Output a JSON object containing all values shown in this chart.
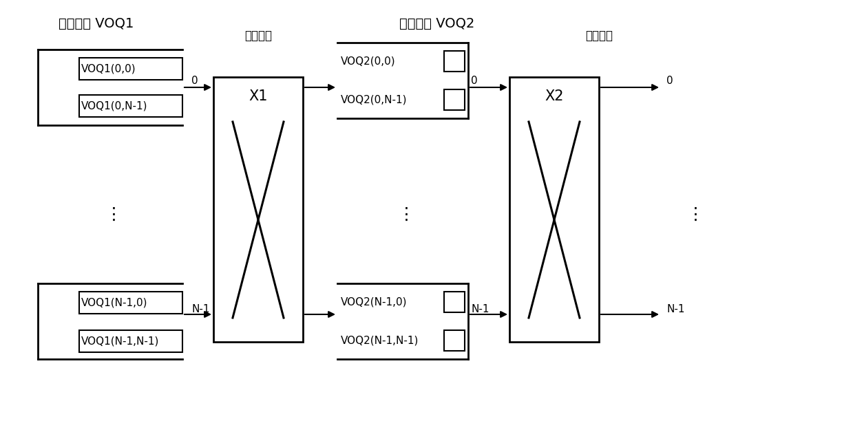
{
  "bg_color": "#ffffff",
  "line_color": "#000000",
  "text_color": "#000000",
  "labels": {
    "voq1_title": "输入缓存 VOQ1",
    "voq2_title": "中间缓存 VOQ2",
    "input_port": "输入端口",
    "mid_port": "中间端口",
    "x1": "X1",
    "x2": "X2",
    "voq1_top_label1": "VOQ1(0,0)",
    "voq1_top_label2": "VOQ1(0,N-1)",
    "voq1_bot_label1": "VOQ1(N-1,0)",
    "voq1_bot_label2": "VOQ1(N-1,N-1)",
    "voq2_top_label1": "VOQ2(0,0)",
    "voq2_top_label2": "VOQ2(0,N-1)",
    "voq2_bot_label1": "VOQ2(N-1,0)",
    "voq2_bot_label2": "VOQ2(N-1,N-1)",
    "port0": "0",
    "portN1": "N-1",
    "dots": "⋮"
  },
  "font_size_title": 14,
  "font_size_label": 11,
  "font_size_port": 12,
  "font_size_switch": 15,
  "font_size_dots": 18
}
